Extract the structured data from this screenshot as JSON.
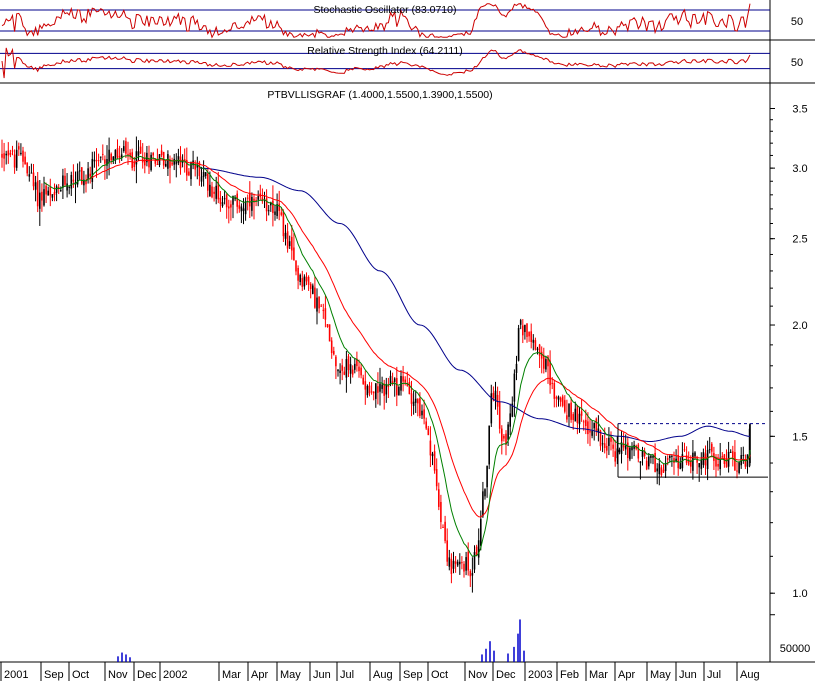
{
  "chart_data": {
    "type": "candlestick",
    "colors": {
      "up": "#000000",
      "down": "#ff0000",
      "ma_fast": "#008000",
      "ma_mid": "#ff0000",
      "ma_slow": "#00008b",
      "oscillator": "#cc0000",
      "volume": "#0000cc",
      "band": "#00008b"
    },
    "stochastic": {
      "title": "Stochastic Oscillator (83.0710)",
      "tick": "50",
      "upper_band": 80,
      "lower_band": 20
    },
    "rsi": {
      "title": "Relative Strength Index (64.2111)",
      "tick": "50",
      "upper_band": 70,
      "lower_band": 30
    },
    "price": {
      "title": "PTBVLLISGRAF (1.4000,1.5500,1.3900,1.5500)",
      "scale": "log",
      "ylim": [
        0.97,
        3.55
      ],
      "yticks": [
        "3.5",
        "3.0",
        "2.5",
        "2.0",
        "1.5",
        "1.0"
      ],
      "ytick_values": [
        3.5,
        3.0,
        2.5,
        2.0,
        1.5,
        1.0
      ],
      "last": {
        "open": 1.4,
        "high": 1.55,
        "low": 1.39,
        "close": 1.55
      },
      "resistance": 1.55,
      "support": 1.35,
      "anchors": [
        [
          0,
          3.1
        ],
        [
          8,
          3.15
        ],
        [
          14,
          3.05
        ],
        [
          20,
          3.1
        ],
        [
          27,
          3.02
        ],
        [
          32,
          2.9
        ],
        [
          38,
          2.78
        ],
        [
          45,
          2.82
        ],
        [
          52,
          2.75
        ],
        [
          58,
          2.82
        ],
        [
          65,
          2.9
        ],
        [
          72,
          2.92
        ],
        [
          80,
          2.95
        ],
        [
          86,
          2.9
        ],
        [
          92,
          3.0
        ],
        [
          100,
          3.02
        ],
        [
          108,
          3.12
        ],
        [
          116,
          3.08
        ],
        [
          124,
          3.1
        ],
        [
          132,
          3.05
        ],
        [
          140,
          3.12
        ],
        [
          148,
          3.07
        ],
        [
          156,
          3.1
        ],
        [
          166,
          3.05
        ],
        [
          176,
          3.05
        ],
        [
          186,
          3.0
        ],
        [
          196,
          3.0
        ],
        [
          204,
          2.92
        ],
        [
          212,
          2.85
        ],
        [
          220,
          2.78
        ],
        [
          230,
          2.75
        ],
        [
          240,
          2.73
        ],
        [
          250,
          2.72
        ],
        [
          260,
          2.73
        ],
        [
          270,
          2.75
        ],
        [
          278,
          2.68
        ],
        [
          284,
          2.55
        ],
        [
          290,
          2.42
        ],
        [
          296,
          2.3
        ],
        [
          304,
          2.25
        ],
        [
          312,
          2.18
        ],
        [
          320,
          2.08
        ],
        [
          328,
          1.98
        ],
        [
          334,
          1.85
        ],
        [
          340,
          1.78
        ],
        [
          348,
          1.8
        ],
        [
          356,
          1.78
        ],
        [
          364,
          1.73
        ],
        [
          372,
          1.7
        ],
        [
          380,
          1.68
        ],
        [
          388,
          1.72
        ],
        [
          396,
          1.7
        ],
        [
          404,
          1.72
        ],
        [
          410,
          1.68
        ],
        [
          416,
          1.65
        ],
        [
          422,
          1.58
        ],
        [
          428,
          1.48
        ],
        [
          434,
          1.38
        ],
        [
          440,
          1.25
        ],
        [
          446,
          1.12
        ],
        [
          452,
          1.06
        ],
        [
          458,
          1.07
        ],
        [
          464,
          1.08
        ],
        [
          470,
          1.06
        ],
        [
          476,
          1.1
        ],
        [
          480,
          1.2
        ],
        [
          484,
          1.3
        ],
        [
          488,
          1.45
        ],
        [
          492,
          1.68
        ],
        [
          496,
          1.72
        ],
        [
          500,
          1.55
        ],
        [
          504,
          1.48
        ],
        [
          508,
          1.52
        ],
        [
          512,
          1.62
        ],
        [
          516,
          1.8
        ],
        [
          520,
          2.1
        ],
        [
          524,
          1.95
        ],
        [
          528,
          2.0
        ],
        [
          532,
          1.95
        ],
        [
          536,
          1.9
        ],
        [
          540,
          1.88
        ],
        [
          546,
          1.8
        ],
        [
          552,
          1.7
        ],
        [
          558,
          1.66
        ],
        [
          564,
          1.6
        ],
        [
          570,
          1.6
        ],
        [
          576,
          1.58
        ],
        [
          582,
          1.55
        ],
        [
          588,
          1.52
        ],
        [
          594,
          1.55
        ],
        [
          600,
          1.5
        ],
        [
          606,
          1.48
        ],
        [
          612,
          1.46
        ],
        [
          616,
          1.4
        ],
        [
          620,
          1.5
        ],
        [
          626,
          1.46
        ],
        [
          632,
          1.44
        ],
        [
          640,
          1.42
        ],
        [
          648,
          1.4
        ],
        [
          656,
          1.4
        ],
        [
          664,
          1.38
        ],
        [
          672,
          1.4
        ],
        [
          680,
          1.41
        ],
        [
          690,
          1.42
        ],
        [
          700,
          1.41
        ],
        [
          710,
          1.42
        ],
        [
          720,
          1.41
        ],
        [
          730,
          1.41
        ],
        [
          740,
          1.4
        ],
        [
          746,
          1.41
        ],
        [
          750,
          1.55
        ]
      ],
      "ma_slow_points": [
        [
          200,
          3.0
        ],
        [
          260,
          2.93
        ],
        [
          300,
          2.83
        ],
        [
          340,
          2.6
        ],
        [
          380,
          2.3
        ],
        [
          420,
          2.0
        ],
        [
          460,
          1.78
        ],
        [
          500,
          1.64
        ],
        [
          540,
          1.57
        ],
        [
          580,
          1.53
        ],
        [
          620,
          1.5
        ],
        [
          650,
          1.48
        ],
        [
          680,
          1.5
        ],
        [
          708,
          1.54
        ],
        [
          730,
          1.52
        ],
        [
          750,
          1.5
        ]
      ]
    },
    "volume": {
      "tick": "50000",
      "spikes": [
        [
          118,
          6000
        ],
        [
          122,
          10000
        ],
        [
          126,
          8000
        ],
        [
          130,
          5000
        ],
        [
          482,
          8000
        ],
        [
          486,
          14000
        ],
        [
          490,
          22000
        ],
        [
          494,
          12000
        ],
        [
          508,
          9000
        ],
        [
          514,
          16000
        ],
        [
          518,
          30000
        ],
        [
          520,
          45000
        ],
        [
          524,
          12000
        ]
      ]
    },
    "x_axis": {
      "labels": [
        {
          "text": "2001",
          "x": 4
        },
        {
          "text": "Sep",
          "x": 44
        },
        {
          "text": "Oct",
          "x": 72
        },
        {
          "text": "Nov",
          "x": 108
        },
        {
          "text": "Dec",
          "x": 137
        },
        {
          "text": "2002",
          "x": 163
        },
        {
          "text": "Mar",
          "x": 222
        },
        {
          "text": "Apr",
          "x": 251
        },
        {
          "text": "May",
          "x": 280
        },
        {
          "text": "Jun",
          "x": 313
        },
        {
          "text": "Jul",
          "x": 340
        },
        {
          "text": "Aug",
          "x": 373
        },
        {
          "text": "Sep",
          "x": 403
        },
        {
          "text": "Oct",
          "x": 431
        },
        {
          "text": "Nov",
          "x": 468
        },
        {
          "text": "Dec",
          "x": 496
        },
        {
          "text": "2003",
          "x": 528
        },
        {
          "text": "Feb",
          "x": 560
        },
        {
          "text": "Mar",
          "x": 589
        },
        {
          "text": "Apr",
          "x": 618
        },
        {
          "text": "May",
          "x": 650
        },
        {
          "text": "Jun",
          "x": 679
        },
        {
          "text": "Jul",
          "x": 707
        },
        {
          "text": "Aug",
          "x": 740
        }
      ]
    }
  }
}
